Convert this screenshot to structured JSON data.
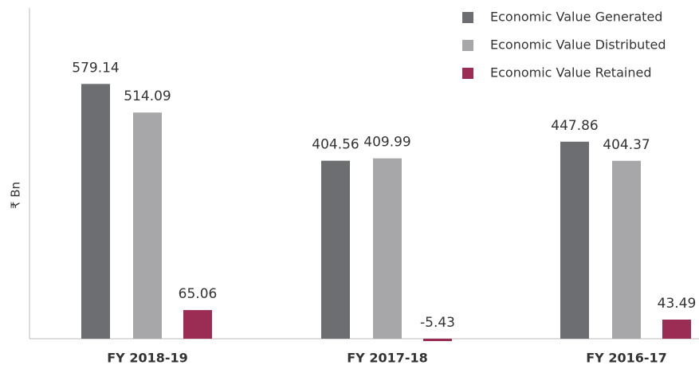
{
  "chart_data": {
    "type": "bar",
    "y_label": "₹ Bn",
    "categories": [
      "FY 2018-19",
      "FY 2017-18",
      "FY 2016-17"
    ],
    "series": [
      {
        "name": "Economic Value Generated",
        "color": "#6d6e71",
        "values": [
          579.14,
          404.56,
          447.86
        ]
      },
      {
        "name": "Economic Value Distributed",
        "color": "#a7a7a9",
        "values": [
          514.09,
          409.99,
          404.37
        ]
      },
      {
        "name": "Economic Value Retained",
        "color": "#9b2c54",
        "values": [
          65.06,
          -5.43,
          43.49
        ]
      }
    ],
    "ylim": [
      0,
      750
    ],
    "legend": "top-right"
  }
}
